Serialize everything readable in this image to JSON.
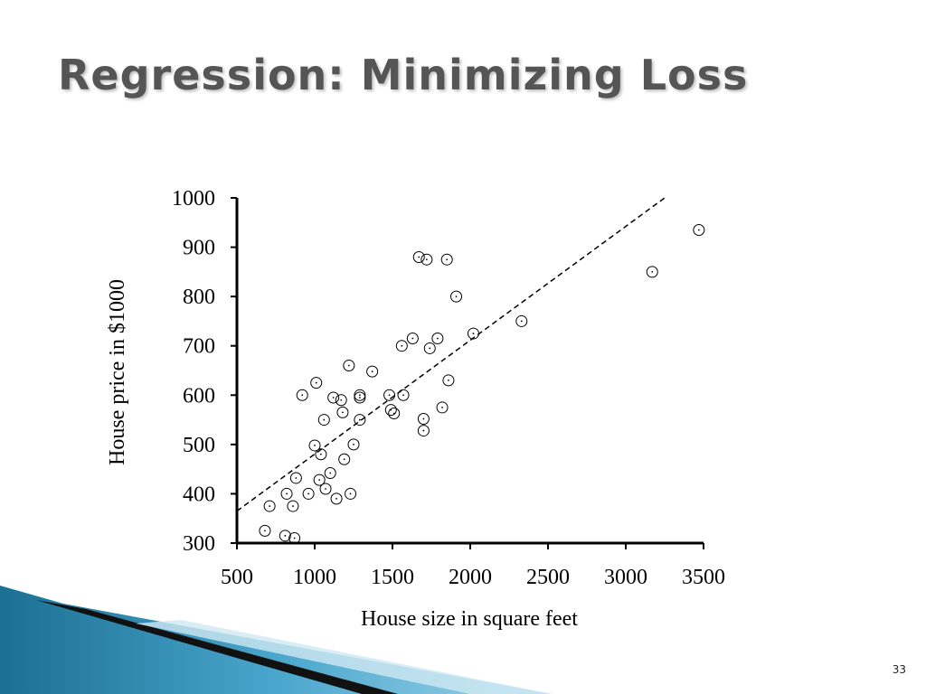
{
  "slide": {
    "title": "Regression: Minimizing Loss",
    "page_number": "33"
  },
  "colors": {
    "title": "#555555",
    "axis": "#000000",
    "marker": "#000000",
    "fit_line": "#000000",
    "decor_blue_dark": "#1b6f93",
    "decor_blue_light": "#7fc4e0"
  },
  "chart_data": {
    "type": "scatter",
    "title": "",
    "xlabel": "House size in square feet",
    "ylabel": "House price in $1000",
    "xlim": [
      500,
      3500
    ],
    "ylim": [
      300,
      1000
    ],
    "x_ticks": [
      500,
      1000,
      1500,
      2000,
      2500,
      3000,
      3500
    ],
    "y_ticks": [
      300,
      400,
      500,
      600,
      700,
      800,
      900,
      1000
    ],
    "grid": false,
    "legend": "none",
    "marker": "open-circle-with-dot",
    "series": [
      {
        "points": [
          [
            680,
            325
          ],
          [
            710,
            375
          ],
          [
            810,
            315
          ],
          [
            820,
            400
          ],
          [
            860,
            375
          ],
          [
            870,
            310
          ],
          [
            880,
            432
          ],
          [
            920,
            600
          ],
          [
            960,
            400
          ],
          [
            1000,
            498
          ],
          [
            1010,
            625
          ],
          [
            1030,
            428
          ],
          [
            1040,
            480
          ],
          [
            1060,
            550
          ],
          [
            1070,
            410
          ],
          [
            1100,
            442
          ],
          [
            1120,
            595
          ],
          [
            1140,
            390
          ],
          [
            1170,
            590
          ],
          [
            1180,
            565
          ],
          [
            1190,
            470
          ],
          [
            1220,
            660
          ],
          [
            1230,
            400
          ],
          [
            1250,
            500
          ],
          [
            1290,
            600
          ],
          [
            1290,
            550
          ],
          [
            1290,
            595
          ],
          [
            1370,
            648
          ],
          [
            1480,
            600
          ],
          [
            1490,
            570
          ],
          [
            1510,
            563
          ],
          [
            1560,
            700
          ],
          [
            1570,
            600
          ],
          [
            1630,
            715
          ],
          [
            1670,
            880
          ],
          [
            1700,
            552
          ],
          [
            1700,
            528
          ],
          [
            1720,
            875
          ],
          [
            1740,
            695
          ],
          [
            1790,
            715
          ],
          [
            1820,
            575
          ],
          [
            1850,
            875
          ],
          [
            1860,
            630
          ],
          [
            1910,
            800
          ],
          [
            2020,
            725
          ],
          [
            2330,
            750
          ],
          [
            3170,
            850
          ],
          [
            3470,
            935
          ]
        ]
      }
    ],
    "fit_line": {
      "style": "dashed",
      "from": [
        500,
        365
      ],
      "to": [
        3250,
        1000
      ]
    }
  }
}
